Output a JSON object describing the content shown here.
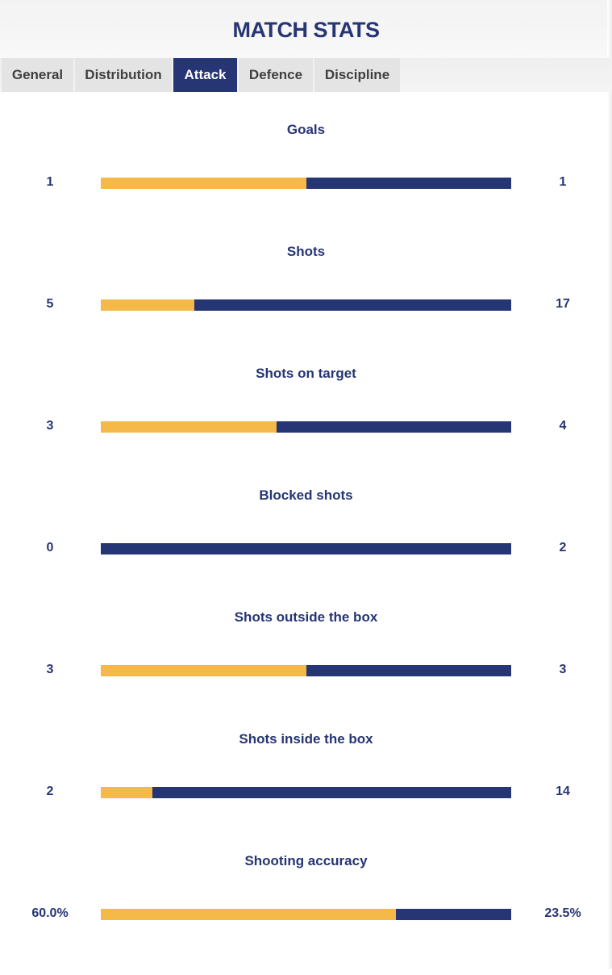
{
  "header": {
    "title": "MATCH STATS"
  },
  "tabs": [
    {
      "label": "General",
      "active": false
    },
    {
      "label": "Distribution",
      "active": false
    },
    {
      "label": "Attack",
      "active": true
    },
    {
      "label": "Defence",
      "active": false
    },
    {
      "label": "Discipline",
      "active": false
    }
  ],
  "colors": {
    "home": "#f5b94a",
    "away": "#263574",
    "text": "#263574"
  },
  "stats": [
    {
      "label": "Goals",
      "home": "1",
      "away": "1",
      "home_share": 0.5
    },
    {
      "label": "Shots",
      "home": "5",
      "away": "17",
      "home_share": 0.2273
    },
    {
      "label": "Shots on target",
      "home": "3",
      "away": "4",
      "home_share": 0.4286
    },
    {
      "label": "Blocked shots",
      "home": "0",
      "away": "2",
      "home_share": 0.0
    },
    {
      "label": "Shots outside the box",
      "home": "3",
      "away": "3",
      "home_share": 0.5
    },
    {
      "label": "Shots inside the box",
      "home": "2",
      "away": "14",
      "home_share": 0.125
    },
    {
      "label": "Shooting accuracy",
      "home": "60.0%",
      "away": "23.5%",
      "home_share": 0.7185
    }
  ]
}
